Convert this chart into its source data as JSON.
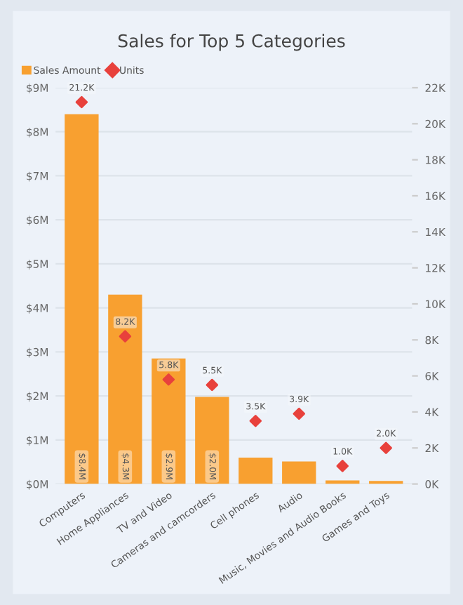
{
  "chart_data": {
    "type": "bar",
    "title": "Sales for Top 5 Categories",
    "categories": [
      "Computers",
      "Home Appliances",
      "TV and Video",
      "Cameras and camcorders",
      "Cell phones",
      "Audio",
      "Music, Movies and Audio Books",
      "Games and Toys"
    ],
    "series": [
      {
        "name": "Sales Amount",
        "color": "#f8a030",
        "values": [
          8400000,
          4300000,
          2850000,
          1980000,
          600000,
          510000,
          80000,
          70000
        ],
        "value_labels": [
          "$8.4M",
          "$4.3M",
          "$2.9M",
          "$2.0M",
          null,
          null,
          null,
          null
        ]
      },
      {
        "name": "Units",
        "type": "scatter",
        "axis": "y2",
        "color": "#e8413c",
        "marker": "diamond",
        "values": [
          21200,
          8200,
          5800,
          5500,
          3500,
          3900,
          1000,
          2000
        ],
        "value_labels": [
          "21.2K",
          "8.2K",
          "5.8K",
          "5.5K",
          "3.5K",
          "3.9K",
          "1.0K",
          "2.0K"
        ]
      }
    ],
    "ylim": [
      0,
      9000000
    ],
    "yticks": [
      {
        "value": 0,
        "label": "$0M"
      },
      {
        "value": 1000000,
        "label": "$1M"
      },
      {
        "value": 2000000,
        "label": "$2M"
      },
      {
        "value": 3000000,
        "label": "$3M"
      },
      {
        "value": 4000000,
        "label": "$4M"
      },
      {
        "value": 5000000,
        "label": "$5M"
      },
      {
        "value": 6000000,
        "label": "$6M"
      },
      {
        "value": 7000000,
        "label": "$7M"
      },
      {
        "value": 8000000,
        "label": "$8M"
      },
      {
        "value": 9000000,
        "label": "$9M"
      }
    ],
    "y2lim": [
      0,
      22000
    ],
    "y2ticks": [
      {
        "value": 0,
        "label": "0K"
      },
      {
        "value": 2000,
        "label": "2K"
      },
      {
        "value": 4000,
        "label": "4K"
      },
      {
        "value": 6000,
        "label": "6K"
      },
      {
        "value": 8000,
        "label": "8K"
      },
      {
        "value": 10000,
        "label": "10K"
      },
      {
        "value": 12000,
        "label": "12K"
      },
      {
        "value": 14000,
        "label": "14K"
      },
      {
        "value": 16000,
        "label": "16K"
      },
      {
        "value": 18000,
        "label": "18K"
      },
      {
        "value": 20000,
        "label": "20K"
      },
      {
        "value": 22000,
        "label": "22K"
      }
    ],
    "grid": "y",
    "legend": "top left"
  }
}
